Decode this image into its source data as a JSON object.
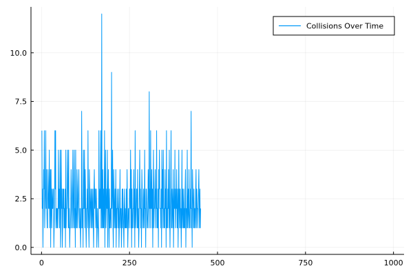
{
  "chart_data": {
    "type": "line",
    "title": "",
    "xlabel": "",
    "ylabel": "",
    "xlim": [
      -30,
      1030
    ],
    "ylim": [
      -0.36,
      12.36
    ],
    "x_ticks": [
      0,
      250,
      500,
      750,
      1000
    ],
    "x_tick_labels": [
      "0",
      "250",
      "500",
      "750",
      "1000"
    ],
    "y_ticks": [
      0,
      2.5,
      5,
      7.5,
      10
    ],
    "y_tick_labels": [
      "0.0",
      "2.5",
      "5.0",
      "7.5",
      "10.0"
    ],
    "grid": true,
    "legend_position": "top-right",
    "x_start": 1,
    "x_step": 1,
    "series": [
      {
        "name": "Collisions Over Time",
        "color": "#009af9",
        "values": [
          6,
          2,
          3,
          0,
          2,
          4,
          3,
          6,
          1,
          2,
          3,
          6,
          2,
          4,
          2,
          1,
          1,
          4,
          3,
          2,
          2,
          5,
          1,
          3,
          4,
          0,
          4,
          2,
          1,
          3,
          2,
          2,
          3,
          3,
          0,
          1,
          2,
          6,
          3,
          6,
          1,
          2,
          2,
          1,
          2,
          1,
          2,
          5,
          2,
          3,
          1,
          3,
          5,
          0,
          1,
          5,
          2,
          3,
          0,
          1,
          3,
          2,
          3,
          1,
          2,
          1,
          3,
          0,
          5,
          1,
          2,
          2,
          3,
          5,
          3,
          1,
          5,
          1,
          2,
          0,
          1,
          1,
          2,
          4,
          3,
          1,
          1,
          3,
          5,
          2,
          1,
          3,
          5,
          1,
          2,
          0,
          5,
          2,
          1,
          1,
          4,
          3,
          1,
          2,
          3,
          4,
          2,
          1,
          2,
          1,
          0,
          2,
          1,
          7,
          3,
          1,
          2,
          0,
          5,
          2,
          2,
          5,
          1,
          4,
          3,
          1,
          0,
          2,
          2,
          3,
          1,
          6,
          2,
          1,
          0,
          4,
          3,
          1,
          2,
          3,
          2,
          1,
          3,
          1,
          2,
          3,
          1,
          0,
          3,
          4,
          2,
          3,
          3,
          1,
          2,
          3,
          0,
          1,
          2,
          1,
          1,
          0,
          6,
          2,
          2,
          3,
          2,
          6,
          1,
          1,
          12,
          2,
          1,
          4,
          1,
          3,
          1,
          2,
          6,
          0,
          3,
          5,
          1,
          2,
          3,
          2,
          5,
          0,
          2,
          4,
          2,
          0,
          3,
          1,
          1,
          2,
          2,
          1,
          9,
          2,
          3,
          5,
          1,
          0,
          4,
          3,
          1,
          2,
          3,
          1,
          4,
          0,
          2,
          1,
          3,
          2,
          2,
          1,
          3,
          0,
          1,
          2,
          4,
          1,
          2,
          2,
          0,
          1,
          3,
          1,
          3,
          2,
          1,
          0,
          2,
          3,
          1,
          2,
          1,
          1,
          3,
          1,
          4,
          2,
          0,
          1,
          2,
          2,
          1,
          3,
          3,
          2,
          5,
          1,
          4,
          0,
          3,
          1,
          1,
          2,
          2,
          4,
          1,
          3,
          0,
          6,
          2,
          1,
          2,
          3,
          3,
          1,
          4,
          1,
          2,
          0,
          1,
          3,
          5,
          2,
          3,
          1,
          2,
          0,
          4,
          3,
          2,
          1,
          1,
          3,
          2,
          1,
          5,
          2,
          2,
          0,
          3,
          3,
          2,
          1,
          1,
          2,
          4,
          3,
          1,
          8,
          2,
          3,
          1,
          6,
          2,
          2,
          4,
          1,
          3,
          0,
          3,
          5,
          1,
          2,
          2,
          3,
          4,
          1,
          3,
          2,
          6,
          1,
          2,
          1,
          3,
          0,
          4,
          3,
          5,
          2,
          2,
          2,
          1,
          3,
          0,
          5,
          2,
          4,
          1,
          5,
          3,
          1,
          2,
          1,
          4,
          2,
          3,
          0,
          6,
          1,
          2,
          1,
          3,
          2,
          4,
          1,
          5,
          2,
          0,
          2,
          3,
          6,
          1,
          1,
          3,
          2,
          1,
          4,
          0,
          2,
          3,
          2,
          5,
          1,
          2,
          3,
          2,
          4,
          1,
          1,
          3,
          0,
          2,
          5,
          2,
          1,
          3,
          3,
          1,
          2,
          0,
          2,
          5,
          1,
          3,
          2,
          1,
          3,
          1,
          2,
          1,
          3,
          4,
          0,
          2,
          1,
          2,
          5,
          1,
          2,
          3,
          1,
          4,
          2,
          1,
          1,
          3,
          2,
          7,
          1,
          2,
          0,
          4,
          3,
          2,
          1,
          3,
          1,
          2,
          2,
          1,
          3,
          4,
          1,
          3,
          2,
          2,
          1,
          2,
          3,
          4,
          2,
          1,
          3,
          1,
          2
        ]
      }
    ]
  }
}
